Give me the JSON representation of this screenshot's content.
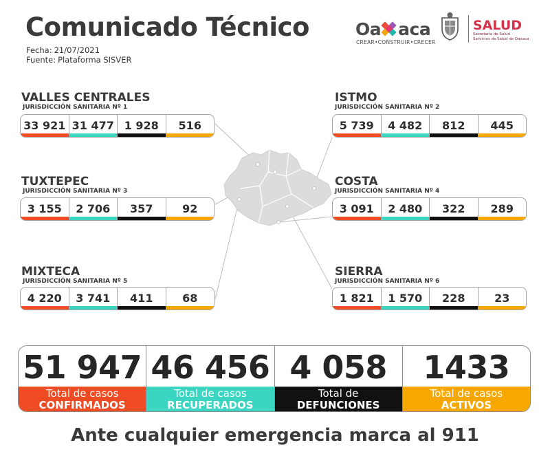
{
  "header": {
    "title": "Comunicado Técnico",
    "date_label": "Fecha:",
    "date": "21/07/2021",
    "source_label": "Fuente:",
    "source": "Plataforma SISVER"
  },
  "logos": {
    "oaxaca": "Oaxaca",
    "oaxaca_tagline": "CREAR•CONSTRUIR•CRECER",
    "salud": "SALUD",
    "salud_sub_1": "Secretaría de Salud",
    "salud_sub_2": "Servicios de Salud de Oaxaca"
  },
  "colors": {
    "confirmados": "#ef4b24",
    "recuperados": "#3ad6c1",
    "defunciones": "#111111",
    "activos": "#f7a800"
  },
  "regions": [
    {
      "name": "VALLES CENTRALES",
      "jurisdiction": "JURISDICCIÓN SANITARIA Nº 1",
      "values": [
        "33 921",
        "31 477",
        "1 928",
        "516"
      ]
    },
    {
      "name": "ISTMO",
      "jurisdiction": "JURISDICCIÓN SANITARIA Nº 2",
      "values": [
        "5 739",
        "4 482",
        "812",
        "445"
      ]
    },
    {
      "name": "TUXTEPEC",
      "jurisdiction": "JURISDICCIÓN SANITARIA Nº 3",
      "values": [
        "3 155",
        "2 706",
        "357",
        "92"
      ]
    },
    {
      "name": "COSTA",
      "jurisdiction": "JURISDICCIÓN SANITARIA Nº 4",
      "values": [
        "3 091",
        "2 480",
        "322",
        "289"
      ]
    },
    {
      "name": "MIXTECA",
      "jurisdiction": "JURISDICCIÓN SANITARIA Nº 5",
      "values": [
        "4 220",
        "3 741",
        "411",
        "68"
      ]
    },
    {
      "name": "SIERRA",
      "jurisdiction": "JURISDICCIÓN SANITARIA Nº 6",
      "values": [
        "1 821",
        "1 570",
        "228",
        "23"
      ]
    }
  ],
  "totals": [
    {
      "value": "51 947",
      "label_1": "Total de casos",
      "label_2": "CONFIRMADOS"
    },
    {
      "value": "46 456",
      "label_1": "Total de casos",
      "label_2": "RECUPERADOS"
    },
    {
      "value": "4 058",
      "label_1": "Total de",
      "label_2": "DEFUNCIONES"
    },
    {
      "value": "1433",
      "label_1": "Total de casos",
      "label_2": "ACTIVOS"
    }
  ],
  "footer": "Ante cualquier emergencia marca al 911"
}
